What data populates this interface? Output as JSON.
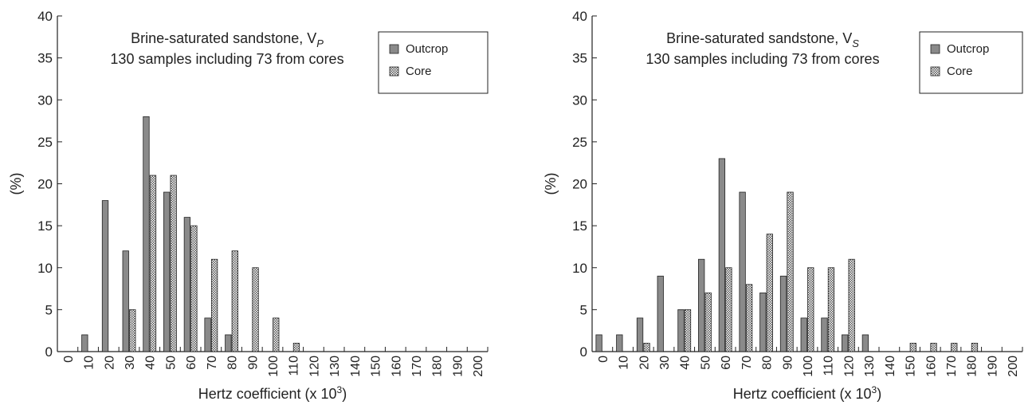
{
  "chart_data": [
    {
      "type": "bar",
      "title_line1": "Brine-saturated sandstone, V",
      "title_sub": "P",
      "title_line2": "130 samples including 73 from cores",
      "xlabel": "Hertz coefficient (x 10",
      "xlabel_sup": "3",
      "xlabel_close": ")",
      "ylabel": "(%)",
      "ylim": [
        0,
        40
      ],
      "yticks": [
        0,
        5,
        10,
        15,
        20,
        25,
        30,
        35,
        40
      ],
      "categories": [
        "0",
        "10",
        "20",
        "30",
        "40",
        "50",
        "60",
        "70",
        "80",
        "90",
        "100",
        "110",
        "120",
        "130",
        "140",
        "150",
        "160",
        "170",
        "180",
        "190",
        "200"
      ],
      "legend_position": "top-right",
      "series": [
        {
          "name": "Outcrop",
          "values": [
            0,
            2,
            18,
            12,
            28,
            19,
            16,
            4,
            2,
            0,
            0,
            0,
            0,
            0,
            0,
            0,
            0,
            0,
            0,
            0,
            0
          ]
        },
        {
          "name": "Core",
          "values": [
            0,
            0,
            0,
            5,
            21,
            21,
            15,
            11,
            12,
            10,
            4,
            1,
            0,
            0,
            0,
            0,
            0,
            0,
            0,
            0,
            0
          ]
        }
      ]
    },
    {
      "type": "bar",
      "title_line1": "Brine-saturated sandstone, V",
      "title_sub": "S",
      "title_line2": "130 samples including 73 from cores",
      "xlabel": "Hertz coefficient (x 10",
      "xlabel_sup": "3",
      "xlabel_close": ")",
      "ylabel": "(%)",
      "ylim": [
        0,
        40
      ],
      "yticks": [
        0,
        5,
        10,
        15,
        20,
        25,
        30,
        35,
        40
      ],
      "categories": [
        "0",
        "10",
        "20",
        "30",
        "40",
        "50",
        "60",
        "70",
        "80",
        "90",
        "100",
        "110",
        "120",
        "130",
        "140",
        "150",
        "160",
        "170",
        "180",
        "190",
        "200"
      ],
      "legend_position": "top-right",
      "series": [
        {
          "name": "Outcrop",
          "values": [
            2,
            2,
            4,
            9,
            5,
            11,
            23,
            19,
            7,
            9,
            4,
            4,
            2,
            2,
            0,
            0,
            0,
            0,
            0,
            0,
            0
          ]
        },
        {
          "name": "Core",
          "values": [
            0,
            0,
            1,
            0,
            5,
            7,
            10,
            8,
            14,
            19,
            10,
            10,
            11,
            0,
            0,
            1,
            1,
            1,
            1,
            0,
            0
          ]
        }
      ]
    }
  ],
  "colors": {
    "outcrop": "#8a8a8a",
    "core_pattern": "checkered"
  }
}
